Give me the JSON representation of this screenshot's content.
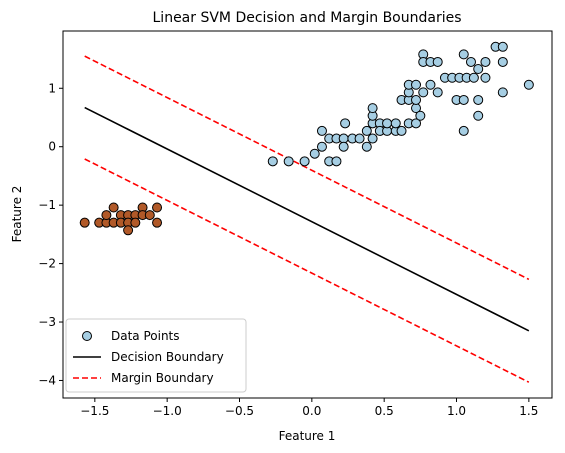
{
  "chart_data": {
    "type": "scatter",
    "title": "Linear SVM Decision and Margin Boundaries",
    "xlabel": "Feature 1",
    "ylabel": "Feature 2",
    "xlim": [
      -1.72,
      1.66
    ],
    "ylim": [
      -4.3,
      1.98
    ],
    "xticks": [
      -1.5,
      -1.0,
      -0.5,
      0.0,
      0.5,
      1.0,
      1.5
    ],
    "xtick_labels": [
      "−1.5",
      "−1.0",
      "−0.5",
      "0.0",
      "0.5",
      "1.0",
      "1.5"
    ],
    "yticks": [
      -4,
      -3,
      -2,
      -1,
      0,
      1
    ],
    "ytick_labels": [
      "−4",
      "−3",
      "−2",
      "−1",
      "0",
      "1"
    ],
    "grid": false,
    "legend_position": "lower-left",
    "legend": [
      {
        "label": "Data Points",
        "kind": "marker"
      },
      {
        "label": "Decision Boundary",
        "kind": "solid-line"
      },
      {
        "label": "Margin Boundary",
        "kind": "dashed-line"
      }
    ],
    "colors": {
      "class_pos": "#a6cee3",
      "class_neg": "#b15928",
      "decision": "#000000",
      "margin": "#ff0000",
      "marker_edge": "#000000"
    },
    "series": [
      {
        "class": 1,
        "points": [
          [
            -0.27,
            -0.25
          ],
          [
            -0.16,
            -0.25
          ],
          [
            -0.05,
            -0.25
          ],
          [
            0.02,
            -0.12
          ],
          [
            0.07,
            0.0
          ],
          [
            0.07,
            0.27
          ],
          [
            0.12,
            0.14
          ],
          [
            0.12,
            -0.25
          ],
          [
            0.17,
            0.14
          ],
          [
            0.17,
            -0.25
          ],
          [
            0.22,
            0.14
          ],
          [
            0.22,
            0.0
          ],
          [
            0.23,
            0.4
          ],
          [
            0.28,
            0.14
          ],
          [
            0.33,
            0.14
          ],
          [
            0.38,
            0.0
          ],
          [
            0.38,
            0.27
          ],
          [
            0.42,
            0.14
          ],
          [
            0.42,
            0.4
          ],
          [
            0.42,
            0.53
          ],
          [
            0.42,
            0.66
          ],
          [
            0.47,
            0.4
          ],
          [
            0.47,
            0.27
          ],
          [
            0.52,
            0.27
          ],
          [
            0.52,
            0.4
          ],
          [
            0.58,
            0.27
          ],
          [
            0.58,
            0.4
          ],
          [
            0.62,
            0.27
          ],
          [
            0.62,
            0.8
          ],
          [
            0.67,
            0.4
          ],
          [
            0.67,
            0.8
          ],
          [
            0.67,
            0.93
          ],
          [
            0.67,
            1.06
          ],
          [
            0.72,
            0.4
          ],
          [
            0.72,
            0.66
          ],
          [
            0.72,
            0.8
          ],
          [
            0.72,
            1.06
          ],
          [
            0.75,
            0.53
          ],
          [
            0.77,
            1.58
          ],
          [
            0.77,
            1.45
          ],
          [
            0.77,
            0.93
          ],
          [
            0.82,
            1.06
          ],
          [
            0.82,
            1.45
          ],
          [
            0.87,
            1.45
          ],
          [
            0.87,
            0.93
          ],
          [
            0.92,
            1.18
          ],
          [
            0.97,
            1.18
          ],
          [
            1.0,
            0.8
          ],
          [
            1.02,
            1.18
          ],
          [
            1.05,
            0.8
          ],
          [
            1.05,
            0.27
          ],
          [
            1.05,
            1.58
          ],
          [
            1.07,
            1.18
          ],
          [
            1.1,
            1.45
          ],
          [
            1.12,
            1.18
          ],
          [
            1.15,
            1.33
          ],
          [
            1.15,
            0.53
          ],
          [
            1.15,
            0.8
          ],
          [
            1.2,
            1.45
          ],
          [
            1.2,
            1.18
          ],
          [
            1.27,
            1.71
          ],
          [
            1.32,
            1.71
          ],
          [
            1.32,
            1.45
          ],
          [
            1.32,
            0.93
          ],
          [
            1.5,
            1.06
          ]
        ]
      },
      {
        "class": -1,
        "points": [
          [
            -1.57,
            -1.3
          ],
          [
            -1.47,
            -1.3
          ],
          [
            -1.42,
            -1.3
          ],
          [
            -1.42,
            -1.17
          ],
          [
            -1.37,
            -1.3
          ],
          [
            -1.37,
            -1.04
          ],
          [
            -1.32,
            -1.17
          ],
          [
            -1.32,
            -1.3
          ],
          [
            -1.27,
            -1.17
          ],
          [
            -1.27,
            -1.3
          ],
          [
            -1.27,
            -1.43
          ],
          [
            -1.22,
            -1.17
          ],
          [
            -1.22,
            -1.3
          ],
          [
            -1.17,
            -1.04
          ],
          [
            -1.17,
            -1.17
          ],
          [
            -1.12,
            -1.17
          ],
          [
            -1.07,
            -1.04
          ],
          [
            -1.07,
            -1.3
          ]
        ]
      }
    ],
    "lines": [
      {
        "kind": "decision",
        "x": [
          -1.57,
          1.5
        ],
        "y": [
          0.67,
          -3.15
        ]
      },
      {
        "kind": "margin_upper",
        "x": [
          -1.57,
          1.5
        ],
        "y": [
          1.55,
          -2.27
        ]
      },
      {
        "kind": "margin_lower",
        "x": [
          -1.57,
          1.5
        ],
        "y": [
          -0.21,
          -4.03
        ]
      }
    ]
  }
}
